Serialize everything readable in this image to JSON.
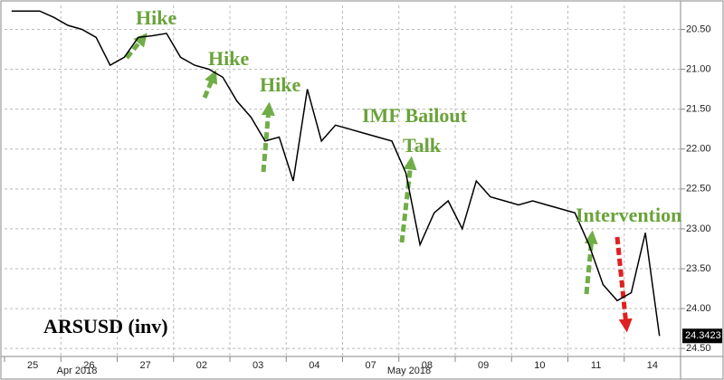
{
  "chart_data": {
    "type": "line",
    "title": "ARSUSD (inv)",
    "categories": [
      null,
      "25",
      null,
      null,
      null,
      "26",
      null,
      null,
      null,
      "27",
      null,
      null,
      null,
      "02",
      null,
      null,
      null,
      "03",
      null,
      null,
      null,
      "04",
      null,
      null,
      null,
      "07",
      null,
      null,
      null,
      "08",
      null,
      null,
      null,
      "09",
      null,
      null,
      null,
      "10",
      null,
      null,
      null,
      "11",
      null,
      null,
      null,
      "14",
      null,
      null
    ],
    "month_labels": [
      "Apr 2018",
      "May 2018"
    ],
    "series": [
      {
        "name": "ARSUSD",
        "color": "#000000",
        "values": [
          20.27,
          20.27,
          20.27,
          20.35,
          20.45,
          20.5,
          20.6,
          20.95,
          20.85,
          20.6,
          20.58,
          20.55,
          20.85,
          20.95,
          21.0,
          21.1,
          21.4,
          21.6,
          21.9,
          21.85,
          22.4,
          21.25,
          21.9,
          21.7,
          21.75,
          21.8,
          21.85,
          21.9,
          22.3,
          23.2,
          22.8,
          22.65,
          23.0,
          22.4,
          22.6,
          22.65,
          22.7,
          22.65,
          22.7,
          22.75,
          22.8,
          23.2,
          23.7,
          23.9,
          23.8,
          23.05,
          24.3423,
          null
        ],
        "value_labels": [
          null,
          null,
          null,
          null,
          null,
          null,
          null,
          null,
          null,
          null,
          null,
          null,
          null,
          null,
          null,
          null,
          null,
          null,
          null,
          null,
          null,
          null,
          null,
          null,
          null,
          null,
          null,
          null,
          null,
          null,
          null,
          null,
          null,
          null,
          null,
          null,
          null,
          null,
          null,
          null,
          null,
          null,
          null,
          null,
          null,
          null,
          "24.3423",
          null
        ]
      }
    ],
    "ylim": [
      20.2,
      24.6
    ],
    "y_inverted": true,
    "yticks": [
      {
        "value": 20.5,
        "label": "20.50"
      },
      {
        "value": 21,
        "label": "21.00"
      },
      {
        "value": 21.5,
        "label": "21.50"
      },
      {
        "value": 22,
        "label": "22.00"
      },
      {
        "value": 22.5,
        "label": "22.50"
      },
      {
        "value": 23,
        "label": "23.00"
      },
      {
        "value": 23.5,
        "label": "23.50"
      },
      {
        "value": 24,
        "label": "24.00"
      },
      {
        "value": 24.5,
        "label": "24.50"
      }
    ],
    "grid": true,
    "annotations": [
      "Hike",
      "Hike",
      "Hike",
      "IMF Bailout",
      "Talk",
      "Intervention"
    ]
  }
}
